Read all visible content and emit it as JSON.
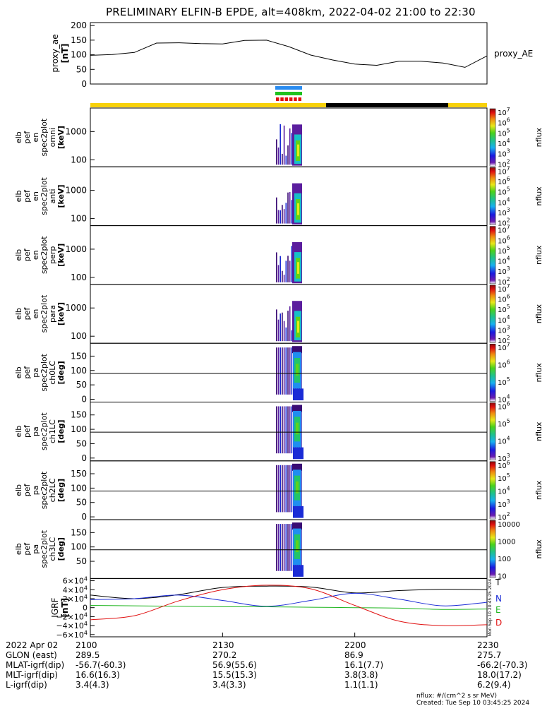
{
  "title": "PRELIMINARY ELFIN-B EPDE, alt=408km, 2022-04-02 21:00 to 22:30",
  "ae_panel": {
    "ylabel": "proxy_ae",
    "yunits": "[nT]",
    "yticks": [
      0,
      50,
      100,
      150,
      200
    ],
    "ylim": [
      0,
      210
    ],
    "legend": "proxy_AE"
  },
  "spec_panels": [
    {
      "name": "en-omni",
      "label": [
        "elb",
        "pef",
        "en",
        "spec2plot",
        "omni",
        "[keV]"
      ],
      "yticks": [
        "1000",
        "100"
      ],
      "cb_ticks": [
        "10^7",
        "10^6",
        "10^5",
        "10^4",
        "10^3",
        "10^2"
      ],
      "cb_label": "nflux"
    },
    {
      "name": "en-anti",
      "label": [
        "elb",
        "pef",
        "en",
        "spec2plot",
        "anti",
        "[keV]"
      ],
      "yticks": [
        "1000",
        "100"
      ],
      "cb_ticks": [
        "10^7",
        "10^6",
        "10^5",
        "10^4",
        "10^3",
        "10^2"
      ],
      "cb_label": "nflux"
    },
    {
      "name": "en-perp",
      "label": [
        "elb",
        "pef",
        "en",
        "spec2plot",
        "perp",
        "[keV]"
      ],
      "yticks": [
        "1000",
        "100"
      ],
      "cb_ticks": [
        "10^7",
        "10^6",
        "10^5",
        "10^4",
        "10^3",
        "10^2"
      ],
      "cb_label": "nflux"
    },
    {
      "name": "en-para",
      "label": [
        "elb",
        "pef",
        "en",
        "spec2plot",
        "para",
        "[keV]"
      ],
      "yticks": [
        "1000",
        "100"
      ],
      "cb_ticks": [
        "10^7",
        "10^6",
        "10^5",
        "10^4",
        "10^3",
        "10^2"
      ],
      "cb_label": "nflux"
    },
    {
      "name": "pa-ch0LC",
      "label": [
        "elb",
        "pef",
        "pa",
        "spec2plot",
        "ch0LC",
        "[deg]"
      ],
      "yticks": [
        "150",
        "100",
        "50",
        "0"
      ],
      "cb_ticks": [
        "10^7",
        "10^6",
        "10^5",
        "10^4"
      ],
      "cb_label": "nflux"
    },
    {
      "name": "pa-ch1LC",
      "label": [
        "elb",
        "pef",
        "pa",
        "spec2plot",
        "ch1LC",
        "[deg]"
      ],
      "yticks": [
        "150",
        "100",
        "50",
        "0"
      ],
      "cb_ticks": [
        "10^6",
        "10^5",
        "10^4",
        "10^3"
      ],
      "cb_label": "nflux"
    },
    {
      "name": "pa-ch2LC",
      "label": [
        "elb",
        "pef",
        "pa",
        "spec2plot",
        "ch2LC",
        "[deg]"
      ],
      "yticks": [
        "150",
        "100",
        "50",
        "0"
      ],
      "cb_ticks": [
        "10^6",
        "10^5",
        "10^4",
        "10^3",
        "10^2"
      ],
      "cb_label": "nflux"
    },
    {
      "name": "pa-ch3LC",
      "label": [
        "elb",
        "pef",
        "pa",
        "spec2plot",
        "ch3LC",
        "[deg]"
      ],
      "yticks": [
        "150",
        "100",
        "50"
      ],
      "cb_ticks": [
        "10000",
        "1000",
        "100",
        "10"
      ],
      "cb_label": "nflux"
    }
  ],
  "igrf_panel": {
    "ylabel": "IGRF",
    "yunits": "[nT]",
    "yticks": [
      "6×10^4",
      "4×10^4",
      "2×10^4",
      "0",
      "−2×10^4",
      "−4×10^4",
      "−6×10^4"
    ],
    "legend": [
      {
        "name": "T",
        "color": "#000000"
      },
      {
        "name": "N",
        "color": "#1a2bd6"
      },
      {
        "name": "E",
        "color": "#1fb51f"
      },
      {
        "name": "D",
        "color": "#e01010"
      }
    ],
    "side_text": "Mon Sep 10 20:45:25 2024"
  },
  "chart_data": {
    "type": "line",
    "title": "PRELIMINARY ELFIN-B EPDE, alt=408km, 2022-04-02 21:00 to 22:30",
    "x_minutes_after_2100": [
      0,
      5,
      10,
      15,
      20,
      25,
      30,
      35,
      40,
      45,
      50,
      55,
      60,
      65,
      70,
      75,
      80,
      85,
      90
    ],
    "series": [
      {
        "name": "proxy_AE",
        "values": [
          98,
          101,
          108,
          140,
          141,
          138,
          137,
          149,
          150,
          128,
          99,
          82,
          68,
          64,
          78,
          78,
          72,
          57,
          96
        ]
      }
    ],
    "igrf_series": {
      "x": [
        0,
        10,
        20,
        30,
        40,
        50,
        60,
        70,
        80,
        90
      ],
      "T": [
        28000,
        20000,
        29000,
        45000,
        48000,
        46000,
        33000,
        38000,
        41000,
        40000
      ],
      "N": [
        18000,
        20000,
        28000,
        16000,
        3000,
        16000,
        32000,
        19000,
        4000,
        12000
      ],
      "E": [
        5000,
        4000,
        3000,
        2000,
        2000,
        1000,
        0,
        -1000,
        -4000,
        -3000
      ],
      "D": [
        -27000,
        -18000,
        15000,
        40000,
        50000,
        42000,
        5000,
        -30000,
        -40000,
        -38000
      ]
    }
  },
  "time_axis": {
    "tick_labels": [
      "2100",
      "2130",
      "2200",
      "2230"
    ],
    "rows": [
      {
        "label": "2022 Apr 02",
        "values": [
          "2100",
          "2130",
          "2200",
          "2230"
        ]
      },
      {
        "label": "GLON (east)",
        "values": [
          "289.5",
          "270.2",
          "86.9",
          "275.7"
        ]
      },
      {
        "label": "MLAT-igrf(dip)",
        "values": [
          "-56.7(-60.3)",
          "56.9(55.6)",
          "16.1(7.7)",
          "-66.2(-70.3)"
        ]
      },
      {
        "label": "MLT-igrf(dip)",
        "values": [
          "16.6(16.3)",
          "15.5(15.3)",
          "3.8(3.8)",
          "18.0(17.2)"
        ]
      },
      {
        "label": "L-igrf(dip)",
        "values": [
          "3.4(4.3)",
          "3.4(3.3)",
          "1.1(1.1)",
          "6.2(9.4)"
        ]
      }
    ]
  },
  "footer": {
    "units": "nflux: #/(cm^2 s sr MeV)",
    "created": "Created: Tue Sep 10 03:45:25 2024"
  }
}
